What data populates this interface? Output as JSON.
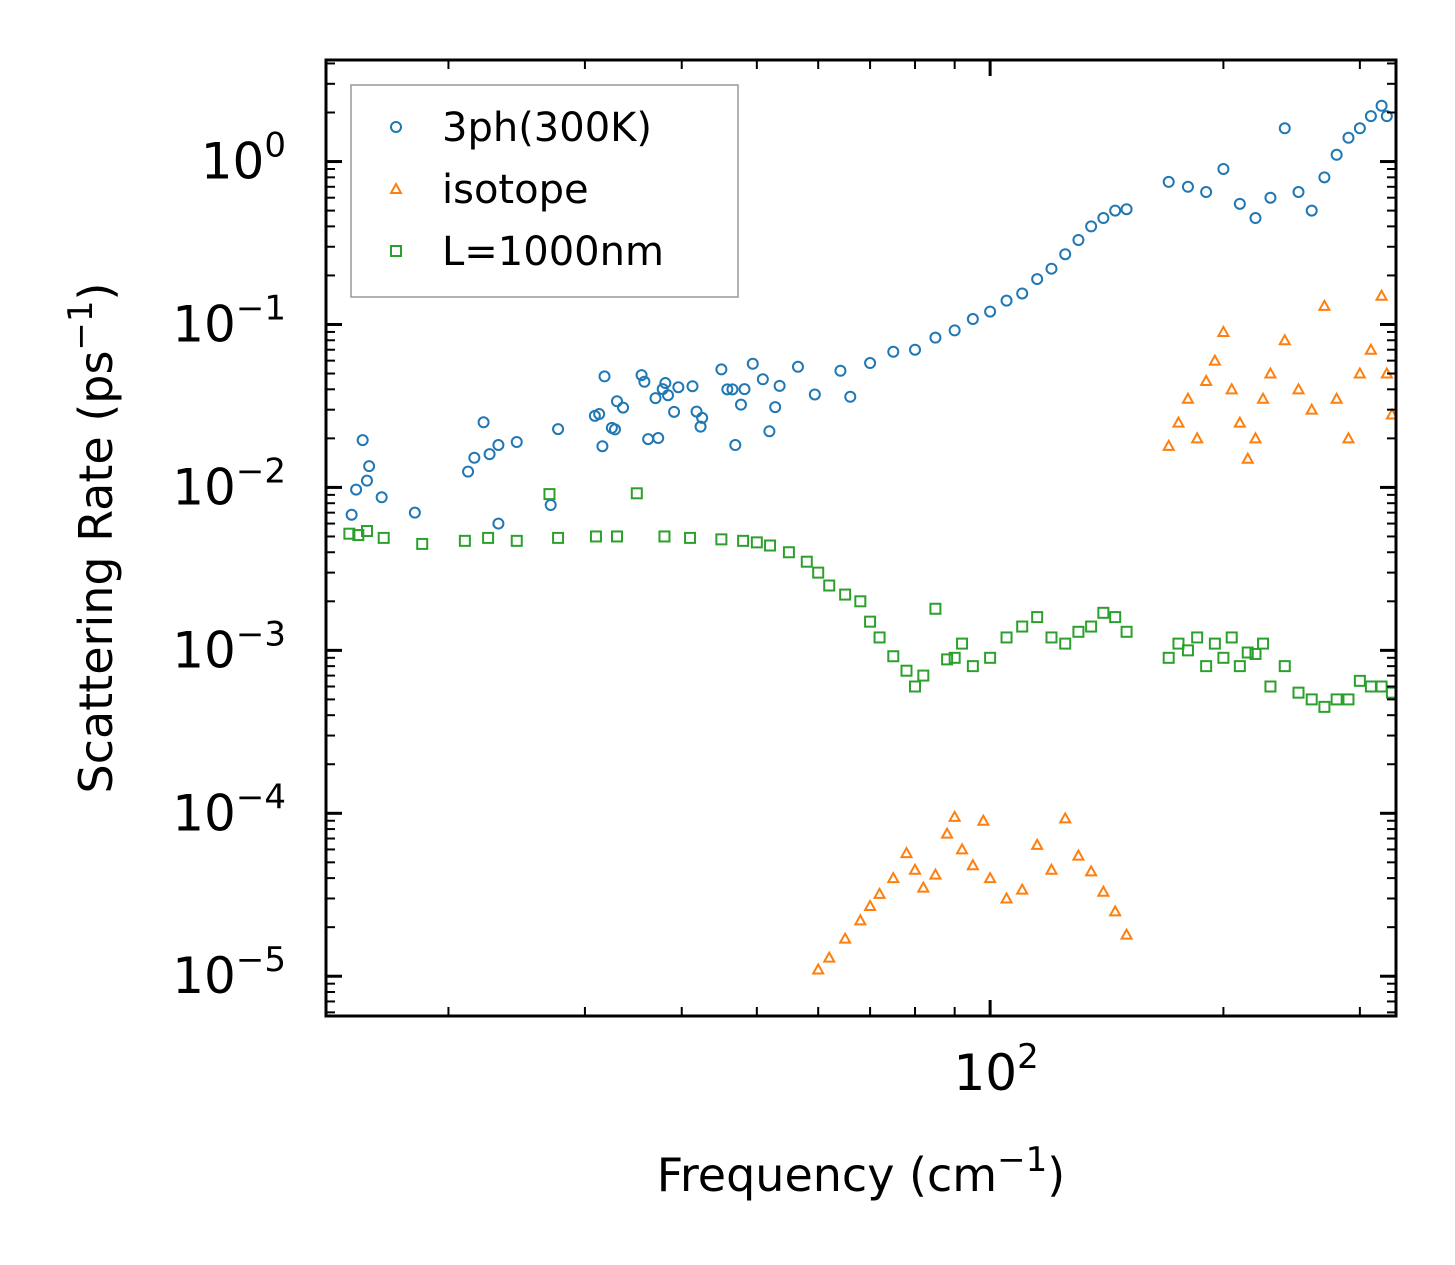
{
  "chart_data": {
    "type": "scatter",
    "xscale": "log",
    "yscale": "log",
    "xlabel": "Frequency (cm",
    "xlabel_sup": "−1",
    "xlabel_end": ")",
    "ylabel": "Scattering Rate (ps",
    "ylabel_sup": "−1",
    "ylabel_end": ")",
    "xlim": [
      13.9,
      334
    ],
    "ylim": [
      5.7e-06,
      4.2
    ],
    "xticks": [
      {
        "value": 100,
        "base": "10",
        "exp": "2"
      }
    ],
    "yticks": [
      {
        "value": 1,
        "base": "10",
        "exp": "0"
      },
      {
        "value": 0.1,
        "base": "10",
        "exp": "−1"
      },
      {
        "value": 0.01,
        "base": "10",
        "exp": "−2"
      },
      {
        "value": 0.001,
        "base": "10",
        "exp": "−3"
      },
      {
        "value": 0.0001,
        "base": "10",
        "exp": "−4"
      },
      {
        "value": 1e-05,
        "base": "10",
        "exp": "−5"
      }
    ],
    "legend_position": "top-left",
    "series": [
      {
        "name": "3ph(300K)",
        "marker": "circle",
        "color": "#1f77b4",
        "points": [
          [
            15,
            0.0068
          ],
          [
            15.2,
            0.0097
          ],
          [
            15.5,
            0.0195
          ],
          [
            15.7,
            0.011
          ],
          [
            15.8,
            0.0135
          ],
          [
            16.4,
            0.0087
          ],
          [
            18.1,
            0.007
          ],
          [
            21.2,
            0.0125
          ],
          [
            21.6,
            0.0152
          ],
          [
            22.2,
            0.0251
          ],
          [
            22.6,
            0.016
          ],
          [
            23.2,
            0.0182
          ],
          [
            23.2,
            0.006
          ],
          [
            24.5,
            0.019
          ],
          [
            27.1,
            0.0078
          ],
          [
            27.7,
            0.0228
          ],
          [
            30.9,
            0.0275
          ],
          [
            31.3,
            0.0282
          ],
          [
            31.6,
            0.0179
          ],
          [
            31.8,
            0.048
          ],
          [
            32.5,
            0.0232
          ],
          [
            32.8,
            0.0227
          ],
          [
            33,
            0.0338
          ],
          [
            33.6,
            0.0309
          ],
          [
            35.5,
            0.0489
          ],
          [
            35.8,
            0.0445
          ],
          [
            36.2,
            0.0198
          ],
          [
            37,
            0.0353
          ],
          [
            37.3,
            0.0201
          ],
          [
            37.8,
            0.0401
          ],
          [
            38.1,
            0.0437
          ],
          [
            38.4,
            0.0368
          ],
          [
            39.1,
            0.0291
          ],
          [
            39.6,
            0.0412
          ],
          [
            41.3,
            0.0418
          ],
          [
            41.8,
            0.0292
          ],
          [
            42.3,
            0.0236
          ],
          [
            42.5,
            0.0267
          ],
          [
            45,
            0.053
          ],
          [
            45.8,
            0.04
          ],
          [
            46.5,
            0.04
          ],
          [
            46.9,
            0.0182
          ],
          [
            47.7,
            0.0322
          ],
          [
            48.2,
            0.0401
          ],
          [
            49.4,
            0.0574
          ],
          [
            50.9,
            0.0461
          ],
          [
            51.9,
            0.0221
          ],
          [
            52.8,
            0.0311
          ],
          [
            53.5,
            0.042
          ],
          [
            56.5,
            0.055
          ],
          [
            59.4,
            0.0372
          ],
          [
            64.1,
            0.052
          ],
          [
            66,
            0.036
          ],
          [
            70,
            0.058
          ],
          [
            75,
            0.068
          ],
          [
            80,
            0.07
          ],
          [
            85,
            0.083
          ],
          [
            90,
            0.092
          ],
          [
            95,
            0.108
          ],
          [
            100,
            0.12
          ],
          [
            105,
            0.14
          ],
          [
            110,
            0.155
          ],
          [
            115,
            0.19
          ],
          [
            120,
            0.22
          ],
          [
            125,
            0.27
          ],
          [
            130,
            0.33
          ],
          [
            135,
            0.4
          ],
          [
            140,
            0.45
          ],
          [
            145,
            0.5
          ],
          [
            150,
            0.51
          ],
          [
            170,
            0.75
          ],
          [
            180,
            0.7
          ],
          [
            190,
            0.65
          ],
          [
            200,
            0.9
          ],
          [
            210,
            0.55
          ],
          [
            220,
            0.45
          ],
          [
            230,
            0.6
          ],
          [
            240,
            1.6
          ],
          [
            250,
            0.65
          ],
          [
            260,
            0.5
          ],
          [
            270,
            0.8
          ],
          [
            280,
            1.1
          ],
          [
            290,
            1.4
          ],
          [
            300,
            1.6
          ],
          [
            310,
            1.9
          ],
          [
            320,
            2.2
          ],
          [
            325,
            1.9
          ]
        ]
      },
      {
        "name": "isotope",
        "marker": "triangle",
        "color": "#ff7f0e",
        "points": [
          [
            60,
            1.1e-05
          ],
          [
            62,
            1.3e-05
          ],
          [
            65,
            1.7e-05
          ],
          [
            68,
            2.2e-05
          ],
          [
            70,
            2.7e-05
          ],
          [
            72,
            3.2e-05
          ],
          [
            75,
            4e-05
          ],
          [
            78,
            5.7e-05
          ],
          [
            80,
            4.5e-05
          ],
          [
            82,
            3.5e-05
          ],
          [
            85,
            4.2e-05
          ],
          [
            88,
            7.5e-05
          ],
          [
            90,
            9.5e-05
          ],
          [
            92,
            6e-05
          ],
          [
            95,
            4.8e-05
          ],
          [
            98,
            9e-05
          ],
          [
            100,
            4e-05
          ],
          [
            105,
            3e-05
          ],
          [
            110,
            3.4e-05
          ],
          [
            115,
            6.4e-05
          ],
          [
            120,
            4.5e-05
          ],
          [
            125,
            9.3e-05
          ],
          [
            130,
            5.5e-05
          ],
          [
            135,
            4.4e-05
          ],
          [
            140,
            3.3e-05
          ],
          [
            145,
            2.5e-05
          ],
          [
            150,
            1.8e-05
          ],
          [
            170,
            0.018
          ],
          [
            175,
            0.025
          ],
          [
            180,
            0.035
          ],
          [
            185,
            0.02
          ],
          [
            190,
            0.045
          ],
          [
            195,
            0.06
          ],
          [
            200,
            0.09
          ],
          [
            205,
            0.04
          ],
          [
            210,
            0.025
          ],
          [
            215,
            0.015
          ],
          [
            220,
            0.02
          ],
          [
            225,
            0.035
          ],
          [
            230,
            0.05
          ],
          [
            240,
            0.08
          ],
          [
            250,
            0.04
          ],
          [
            260,
            0.03
          ],
          [
            270,
            0.13
          ],
          [
            280,
            0.035
          ],
          [
            290,
            0.02
          ],
          [
            300,
            0.05
          ],
          [
            310,
            0.07
          ],
          [
            320,
            0.15
          ],
          [
            325,
            0.05
          ],
          [
            330,
            0.028
          ]
        ]
      },
      {
        "name": "L=1000nm",
        "marker": "square",
        "color": "#2ca02c",
        "points": [
          [
            14.9,
            0.0052
          ],
          [
            15.3,
            0.0051
          ],
          [
            15.7,
            0.0054
          ],
          [
            16.5,
            0.0049
          ],
          [
            18.5,
            0.0045
          ],
          [
            21,
            0.0047
          ],
          [
            22.5,
            0.0049
          ],
          [
            24.5,
            0.0047
          ],
          [
            27,
            0.0091
          ],
          [
            27.7,
            0.0049
          ],
          [
            31,
            0.005
          ],
          [
            33,
            0.005
          ],
          [
            35,
            0.0092
          ],
          [
            38,
            0.005
          ],
          [
            41,
            0.0049
          ],
          [
            45,
            0.0048
          ],
          [
            48,
            0.0047
          ],
          [
            50,
            0.0046
          ],
          [
            52,
            0.0044
          ],
          [
            55,
            0.004
          ],
          [
            58,
            0.0035
          ],
          [
            60,
            0.003
          ],
          [
            62,
            0.0025
          ],
          [
            65,
            0.0022
          ],
          [
            68,
            0.002
          ],
          [
            70,
            0.0015
          ],
          [
            72,
            0.0012
          ],
          [
            75,
            0.00092
          ],
          [
            78,
            0.00075
          ],
          [
            80,
            0.0006
          ],
          [
            82,
            0.0007
          ],
          [
            85,
            0.0018
          ],
          [
            88,
            0.00088
          ],
          [
            90,
            0.0009
          ],
          [
            92,
            0.0011
          ],
          [
            95,
            0.0008
          ],
          [
            100,
            0.0009
          ],
          [
            105,
            0.0012
          ],
          [
            110,
            0.0014
          ],
          [
            115,
            0.0016
          ],
          [
            120,
            0.0012
          ],
          [
            125,
            0.0011
          ],
          [
            130,
            0.0013
          ],
          [
            135,
            0.0014
          ],
          [
            140,
            0.0017
          ],
          [
            145,
            0.0016
          ],
          [
            150,
            0.0013
          ],
          [
            170,
            0.0009
          ],
          [
            175,
            0.0011
          ],
          [
            180,
            0.001
          ],
          [
            185,
            0.0012
          ],
          [
            190,
            0.0008
          ],
          [
            195,
            0.0011
          ],
          [
            200,
            0.0009
          ],
          [
            205,
            0.0012
          ],
          [
            210,
            0.0008
          ],
          [
            215,
            0.00097
          ],
          [
            220,
            0.00095
          ],
          [
            225,
            0.0011
          ],
          [
            230,
            0.0006
          ],
          [
            240,
            0.0008
          ],
          [
            250,
            0.00055
          ],
          [
            260,
            0.0005
          ],
          [
            270,
            0.00045
          ],
          [
            280,
            0.0005
          ],
          [
            290,
            0.0005
          ],
          [
            300,
            0.00065
          ],
          [
            310,
            0.0006
          ],
          [
            320,
            0.0006
          ],
          [
            330,
            0.00055
          ]
        ]
      }
    ]
  }
}
